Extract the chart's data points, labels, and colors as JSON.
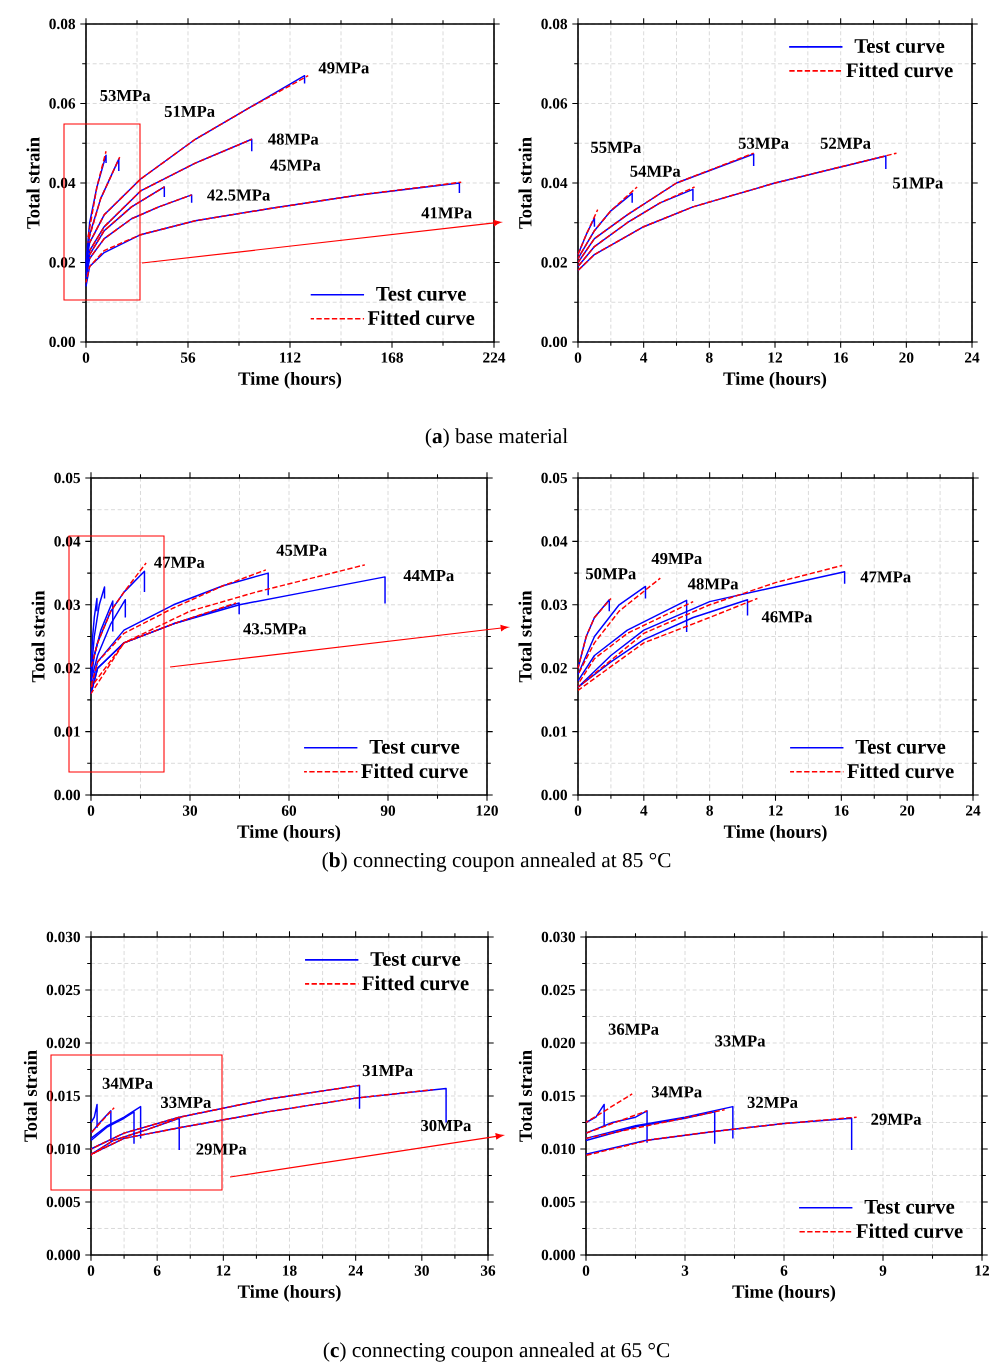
{
  "chart_data": [
    {
      "type": "line",
      "xlabel": "Time (hours)",
      "ylabel": "Total strain",
      "xlim": [
        0,
        224
      ],
      "ylim": [
        0,
        0.08
      ],
      "xticks": [
        0,
        56,
        112,
        168,
        224
      ],
      "yticks": [
        {
          "value": 0,
          "label": "0.00"
        },
        {
          "value": 0.02,
          "label": "0.02"
        },
        {
          "value": 0.04,
          "label": "0.04"
        },
        {
          "value": 0.06,
          "label": "0.06"
        },
        {
          "value": 0.08,
          "label": "0.08"
        }
      ],
      "grid": true,
      "legend": "bottom right",
      "series": [
        {
          "name": "Test curve",
          "color": "#0000ff",
          "line_style": "solid",
          "x": [
            0,
            2,
            10,
            30,
            60,
            100,
            150,
            205,
            205
          ],
          "values": [
            0.014,
            0.019,
            0.0225,
            0.027,
            0.0305,
            0.0335,
            0.037,
            0.04,
            0.0375
          ]
        },
        {
          "color": "#0000ff",
          "line_style": "solid",
          "x": [
            0,
            2,
            10,
            25,
            40,
            58,
            58
          ],
          "values": [
            0.016,
            0.021,
            0.026,
            0.031,
            0.034,
            0.037,
            0.035
          ]
        },
        {
          "color": "#0000ff",
          "line_style": "solid",
          "x": [
            0,
            2,
            10,
            25,
            43,
            43
          ],
          "values": [
            0.017,
            0.022,
            0.028,
            0.034,
            0.039,
            0.0365
          ]
        },
        {
          "color": "#0000ff",
          "line_style": "solid",
          "x": [
            0,
            2,
            10,
            30,
            60,
            91,
            91
          ],
          "values": [
            0.018,
            0.023,
            0.029,
            0.038,
            0.045,
            0.051,
            0.048
          ]
        },
        {
          "color": "#0000ff",
          "line_style": "solid",
          "x": [
            0,
            2,
            10,
            30,
            60,
            90,
            120,
            120
          ],
          "values": [
            0.019,
            0.025,
            0.032,
            0.041,
            0.051,
            0.059,
            0.067,
            0.065
          ]
        },
        {
          "color": "#0000ff",
          "line_style": "solid",
          "x": [
            0,
            2,
            8,
            18,
            18
          ],
          "values": [
            0.019,
            0.027,
            0.036,
            0.046,
            0.043
          ]
        },
        {
          "color": "#0000ff",
          "line_style": "solid",
          "x": [
            0,
            2,
            6,
            11,
            11
          ],
          "values": [
            0.02,
            0.03,
            0.039,
            0.047,
            0.045
          ]
        },
        {
          "name": "Fitted curve",
          "color": "#ff0000",
          "line_style": "dashed",
          "x": [
            0,
            2,
            10,
            30,
            60,
            100,
            150,
            206
          ],
          "values": [
            0.015,
            0.019,
            0.023,
            0.027,
            0.0305,
            0.0335,
            0.037,
            0.0402
          ]
        },
        {
          "color": "#ff0000",
          "line_style": "dashed",
          "x": [
            2,
            10,
            25,
            40,
            58
          ],
          "values": [
            0.021,
            0.026,
            0.031,
            0.034,
            0.037
          ]
        },
        {
          "color": "#ff0000",
          "line_style": "dashed",
          "x": [
            2,
            10,
            25,
            43
          ],
          "values": [
            0.022,
            0.028,
            0.034,
            0.039
          ]
        },
        {
          "color": "#ff0000",
          "line_style": "dashed",
          "x": [
            2,
            10,
            30,
            60,
            91
          ],
          "values": [
            0.023,
            0.029,
            0.038,
            0.045,
            0.051
          ]
        },
        {
          "color": "#ff0000",
          "line_style": "dashed",
          "x": [
            2,
            10,
            30,
            60,
            90,
            122
          ],
          "values": [
            0.025,
            0.032,
            0.041,
            0.051,
            0.059,
            0.067
          ]
        },
        {
          "color": "#ff0000",
          "line_style": "dashed",
          "x": [
            1,
            8,
            18.5
          ],
          "values": [
            0.025,
            0.036,
            0.0465
          ]
        },
        {
          "color": "#ff0000",
          "line_style": "dashed",
          "x": [
            1,
            6,
            11
          ],
          "values": [
            0.026,
            0.039,
            0.048
          ]
        }
      ],
      "annotations": [
        "53MPa",
        "51MPa",
        "49MPa",
        "48MPa",
        "45MPa",
        "42.5MPa",
        "41MPa",
        "(**a**) base material"
      ]
    },
    {
      "type": "line",
      "xlabel": "Time (hours)",
      "ylabel": "Total strain",
      "xlim": [
        0,
        24
      ],
      "ylim": [
        0,
        0.08
      ],
      "xticks": [
        0,
        4,
        8,
        12,
        16,
        20,
        24
      ],
      "yticks": [
        {
          "value": 0,
          "label": "0.00"
        },
        {
          "value": 0.02,
          "label": "0.02"
        },
        {
          "value": 0.04,
          "label": "0.04"
        },
        {
          "value": 0.06,
          "label": "0.06"
        },
        {
          "value": 0.08,
          "label": "0.08"
        }
      ],
      "grid": true,
      "legend": "top right",
      "series": [
        {
          "name": "Test curve",
          "color": "#0000ff",
          "line_style": "solid",
          "x": [
            0,
            1,
            4,
            7,
            12,
            18.75,
            18.75
          ],
          "values": [
            0.018,
            0.022,
            0.029,
            0.034,
            0.04,
            0.0468,
            0.0435
          ]
        },
        {
          "color": "#0000ff",
          "line_style": "solid",
          "x": [
            0,
            1,
            3,
            5,
            7,
            7
          ],
          "values": [
            0.019,
            0.024,
            0.03,
            0.035,
            0.0384,
            0.0355
          ]
        },
        {
          "color": "#0000ff",
          "line_style": "solid",
          "x": [
            0,
            1,
            3,
            6,
            10.7,
            10.7
          ],
          "values": [
            0.02,
            0.026,
            0.032,
            0.04,
            0.0473,
            0.0443
          ]
        },
        {
          "color": "#0000ff",
          "line_style": "solid",
          "x": [
            0,
            1,
            2,
            3.3,
            3.3
          ],
          "values": [
            0.021,
            0.028,
            0.033,
            0.0374,
            0.035
          ]
        },
        {
          "color": "#0000ff",
          "line_style": "solid",
          "x": [
            0,
            0.5,
            1,
            1
          ],
          "values": [
            0.022,
            0.027,
            0.0312,
            0.029
          ]
        },
        {
          "name": "Fitted curve",
          "color": "#ff0000",
          "line_style": "dashed",
          "x": [
            0,
            1,
            4,
            7,
            12,
            19.4
          ],
          "values": [
            0.018,
            0.022,
            0.029,
            0.034,
            0.04,
            0.0475
          ]
        },
        {
          "color": "#ff0000",
          "line_style": "dashed",
          "x": [
            0,
            1,
            3,
            5,
            7.1
          ],
          "values": [
            0.019,
            0.024,
            0.03,
            0.035,
            0.039
          ]
        },
        {
          "color": "#ff0000",
          "line_style": "dashed",
          "x": [
            0,
            1,
            3,
            6,
            10.7
          ],
          "values": [
            0.02,
            0.026,
            0.032,
            0.04,
            0.0475
          ]
        },
        {
          "color": "#ff0000",
          "line_style": "dashed",
          "x": [
            0,
            1,
            2,
            3.6
          ],
          "values": [
            0.021,
            0.028,
            0.033,
            0.039
          ]
        },
        {
          "color": "#ff0000",
          "line_style": "dashed",
          "x": [
            0,
            0.5,
            1.2
          ],
          "values": [
            0.022,
            0.027,
            0.0333
          ]
        }
      ],
      "annotations": [
        "55MPa",
        "54MPa",
        "53MPa",
        "52MPa",
        "51MPa"
      ]
    },
    {
      "type": "line",
      "xlabel": "Time (hours)",
      "ylabel": "Total strain",
      "xlim": [
        0,
        120
      ],
      "ylim": [
        0,
        0.05
      ],
      "xticks": [
        0,
        30,
        60,
        90,
        120
      ],
      "yticks": [
        {
          "value": 0,
          "label": "0.00"
        },
        {
          "value": 0.01,
          "label": "0.01"
        },
        {
          "value": 0.02,
          "label": "0.02"
        },
        {
          "value": 0.03,
          "label": "0.03"
        },
        {
          "value": 0.04,
          "label": "0.04"
        },
        {
          "value": 0.05,
          "label": "0.05"
        }
      ],
      "grid": true,
      "legend": "bottom right",
      "series": [
        {
          "name": "Test curve",
          "color": "#0000ff",
          "line_style": "solid",
          "x": [
            0,
            2,
            10,
            25,
            45,
            65,
            89.1,
            89.1
          ],
          "values": [
            0.016,
            0.02,
            0.024,
            0.027,
            0.03,
            0.032,
            0.0344,
            0.0302
          ]
        },
        {
          "color": "#0000ff",
          "line_style": "solid",
          "x": [
            0,
            2,
            10,
            25,
            40,
            53.7,
            53.7
          ],
          "values": [
            0.017,
            0.021,
            0.026,
            0.03,
            0.033,
            0.035,
            0.0315
          ]
        },
        {
          "color": "#0000ff",
          "line_style": "solid",
          "x": [
            0,
            2,
            10,
            25,
            44.9,
            44.9
          ],
          "values": [
            0.016,
            0.02,
            0.024,
            0.027,
            0.0303,
            0.0285
          ]
        },
        {
          "color": "#0000ff",
          "line_style": "solid",
          "x": [
            0,
            2,
            6,
            10,
            16.2,
            16.2
          ],
          "values": [
            0.02,
            0.024,
            0.029,
            0.032,
            0.0353,
            0.032
          ]
        },
        {
          "color": "#0000ff",
          "line_style": "solid",
          "x": [
            0,
            2,
            6,
            10.4,
            10.4
          ],
          "values": [
            0.018,
            0.022,
            0.027,
            0.0308,
            0.028
          ]
        },
        {
          "color": "#0000ff",
          "line_style": "solid",
          "x": [
            0,
            1,
            3,
            6.6,
            6.6
          ],
          "values": [
            0.018,
            0.022,
            0.026,
            0.0306,
            0.0258
          ]
        },
        {
          "color": "#0000ff",
          "line_style": "solid",
          "x": [
            0,
            1,
            2.5,
            4.1,
            4.1
          ],
          "values": [
            0.019,
            0.025,
            0.03,
            0.0328,
            0.031
          ]
        },
        {
          "color": "#0000ff",
          "line_style": "solid",
          "x": [
            0,
            0.5,
            1,
            1.8,
            1.8
          ],
          "values": [
            0.02,
            0.025,
            0.028,
            0.031,
            0.029
          ]
        },
        {
          "name": "Fitted curve",
          "color": "#ff0000",
          "line_style": "dashed",
          "x": [
            0,
            10,
            30,
            50,
            83
          ],
          "values": [
            0.017,
            0.024,
            0.029,
            0.032,
            0.0363
          ]
        },
        {
          "color": "#ff0000",
          "line_style": "dashed",
          "x": [
            0,
            2,
            10,
            25,
            40,
            53
          ],
          "values": [
            0.017,
            0.021,
            0.0255,
            0.0295,
            0.033,
            0.0355
          ]
        },
        {
          "color": "#ff0000",
          "line_style": "dashed",
          "x": [
            0,
            10,
            25,
            44
          ],
          "values": [
            0.016,
            0.024,
            0.027,
            0.0303
          ]
        },
        {
          "color": "#ff0000",
          "line_style": "dashed",
          "x": [
            0,
            2,
            6,
            10,
            16.7
          ],
          "values": [
            0.02,
            0.024,
            0.029,
            0.032,
            0.0366
          ]
        }
      ],
      "annotations": [
        "47MPa",
        "45MPa",
        "44MPa",
        "43.5MPa",
        "(**b**) connecting coupon annealed at 85 °C"
      ]
    },
    {
      "type": "line",
      "xlabel": "Time (hours)",
      "ylabel": "Total strain",
      "xlim": [
        0,
        24
      ],
      "ylim": [
        0,
        0.05
      ],
      "xticks": [
        0,
        4,
        8,
        12,
        16,
        20,
        24
      ],
      "yticks": [
        {
          "value": 0,
          "label": "0.00"
        },
        {
          "value": 0.01,
          "label": "0.01"
        },
        {
          "value": 0.02,
          "label": "0.02"
        },
        {
          "value": 0.03,
          "label": "0.03"
        },
        {
          "value": 0.04,
          "label": "0.04"
        },
        {
          "value": 0.05,
          "label": "0.05"
        }
      ],
      "grid": true,
      "legend": "bottom right",
      "series": [
        {
          "name": "Test curve",
          "color": "#0000ff",
          "line_style": "solid",
          "x": [
            0,
            2,
            4,
            8,
            12,
            16.2,
            16.2
          ],
          "values": [
            0.017,
            0.022,
            0.026,
            0.0305,
            0.0328,
            0.0352,
            0.0333
          ]
        },
        {
          "color": "#0000ff",
          "line_style": "solid",
          "x": [
            0,
            2,
            4,
            7,
            10.3,
            10.3
          ],
          "values": [
            0.017,
            0.021,
            0.0245,
            0.028,
            0.0308,
            0.0283
          ]
        },
        {
          "color": "#0000ff",
          "line_style": "solid",
          "x": [
            0,
            1,
            3,
            6.6,
            6.6
          ],
          "values": [
            0.018,
            0.022,
            0.026,
            0.0307,
            0.0257
          ]
        },
        {
          "color": "#0000ff",
          "line_style": "solid",
          "x": [
            0,
            1,
            2.5,
            4.1,
            4.1
          ],
          "values": [
            0.019,
            0.025,
            0.03,
            0.0329,
            0.031
          ]
        },
        {
          "color": "#0000ff",
          "line_style": "solid",
          "x": [
            0,
            0.5,
            1,
            1.9,
            1.9
          ],
          "values": [
            0.02,
            0.025,
            0.028,
            0.0308,
            0.029
          ]
        },
        {
          "name": "Fitted curve",
          "color": "#ff0000",
          "line_style": "dashed",
          "x": [
            0,
            4,
            8,
            12,
            16.05
          ],
          "values": [
            0.017,
            0.0255,
            0.03,
            0.0335,
            0.0362
          ]
        },
        {
          "color": "#ff0000",
          "line_style": "dashed",
          "x": [
            0,
            4,
            8,
            10.9
          ],
          "values": [
            0.0165,
            0.024,
            0.028,
            0.031
          ]
        },
        {
          "color": "#ff0000",
          "line_style": "dashed",
          "x": [
            0,
            1,
            3,
            7
          ],
          "values": [
            0.0175,
            0.0215,
            0.0255,
            0.0305
          ]
        },
        {
          "color": "#ff0000",
          "line_style": "dashed",
          "x": [
            0,
            1,
            2.5,
            5
          ],
          "values": [
            0.019,
            0.024,
            0.029,
            0.0342
          ]
        },
        {
          "color": "#ff0000",
          "line_style": "dashed",
          "x": [
            0,
            0.5,
            1,
            2
          ],
          "values": [
            0.02,
            0.025,
            0.028,
            0.031
          ]
        }
      ],
      "annotations": [
        "50MPa",
        "49MPa",
        "48MPa",
        "47MPa",
        "46MPa"
      ]
    },
    {
      "type": "line",
      "xlabel": "Time (hours)",
      "ylabel": "Total strain",
      "xlim": [
        0,
        36
      ],
      "ylim": [
        0,
        0.03
      ],
      "xticks": [
        0,
        6,
        12,
        18,
        24,
        30,
        36
      ],
      "yticks": [
        {
          "value": 0,
          "label": "0.000"
        },
        {
          "value": 0.005,
          "label": "0.005"
        },
        {
          "value": 0.01,
          "label": "0.010"
        },
        {
          "value": 0.015,
          "label": "0.015"
        },
        {
          "value": 0.02,
          "label": "0.020"
        },
        {
          "value": 0.025,
          "label": "0.025"
        },
        {
          "value": 0.03,
          "label": "0.030"
        }
      ],
      "grid": true,
      "legend": "top right",
      "series": [
        {
          "name": "Test curve",
          "color": "#0000ff",
          "line_style": "solid",
          "x": [
            0,
            3,
            8,
            16,
            24,
            32.2,
            32.2
          ],
          "values": [
            0.0095,
            0.011,
            0.012,
            0.0135,
            0.0148,
            0.0157,
            0.0125
          ]
        },
        {
          "color": "#0000ff",
          "line_style": "solid",
          "x": [
            0,
            3,
            8,
            16,
            24.35,
            24.35
          ],
          "values": [
            0.01,
            0.0115,
            0.013,
            0.0147,
            0.016,
            0.0138
          ]
        },
        {
          "color": "#0000ff",
          "line_style": "solid",
          "x": [
            0,
            2,
            5,
            8,
            8
          ],
          "values": [
            0.0095,
            0.0108,
            0.0118,
            0.0129,
            0.0099
          ]
        },
        {
          "color": "#0000ff",
          "line_style": "solid",
          "x": [
            0,
            1.5,
            3,
            4.5,
            4.5
          ],
          "values": [
            0.011,
            0.0122,
            0.013,
            0.014,
            0.011
          ]
        },
        {
          "color": "#0000ff",
          "line_style": "solid",
          "x": [
            0,
            1.5,
            3,
            3.9,
            3.9
          ],
          "values": [
            0.0108,
            0.0121,
            0.0129,
            0.0135,
            0.0105
          ]
        },
        {
          "color": "#0000ff",
          "line_style": "solid",
          "x": [
            0,
            0.8,
            1.8,
            1.8
          ],
          "values": [
            0.0115,
            0.0125,
            0.0136,
            0.0107
          ]
        },
        {
          "color": "#0000ff",
          "line_style": "solid",
          "x": [
            0,
            0.3,
            0.55,
            0.55
          ],
          "values": [
            0.0125,
            0.013,
            0.0142,
            0.012
          ]
        },
        {
          "name": "Fitted curve",
          "color": "#ff0000",
          "line_style": "dashed",
          "x": [
            0,
            3,
            8,
            16,
            24,
            31
          ],
          "values": [
            0.0095,
            0.011,
            0.012,
            0.0135,
            0.0148,
            0.0156
          ]
        },
        {
          "color": "#ff0000",
          "line_style": "dashed",
          "x": [
            0,
            3,
            8,
            16,
            24.35
          ],
          "values": [
            0.01,
            0.0115,
            0.013,
            0.0147,
            0.016
          ]
        },
        {
          "color": "#ff0000",
          "line_style": "dashed",
          "x": [
            0,
            2,
            5,
            8.2
          ],
          "values": [
            0.0094,
            0.0108,
            0.0118,
            0.013
          ]
        },
        {
          "color": "#ff0000",
          "line_style": "dashed",
          "x": [
            0,
            2.1
          ],
          "values": [
            0.0115,
            0.0139
          ]
        }
      ],
      "annotations": [
        "34MPa",
        "33MPa",
        "31MPa",
        "30MPa",
        "29MPa",
        "(**c**) connecting coupon annealed at 65 °C"
      ]
    },
    {
      "type": "line",
      "xlabel": "Time (hours)",
      "ylabel": "Total strain",
      "xlim": [
        0,
        12
      ],
      "ylim": [
        0,
        0.03
      ],
      "xticks": [
        0,
        3,
        6,
        9,
        12
      ],
      "yticks": [
        {
          "value": 0,
          "label": "0.000"
        },
        {
          "value": 0.005,
          "label": "0.005"
        },
        {
          "value": 0.01,
          "label": "0.010"
        },
        {
          "value": 0.015,
          "label": "0.015"
        },
        {
          "value": 0.02,
          "label": "0.020"
        },
        {
          "value": 0.025,
          "label": "0.025"
        },
        {
          "value": 0.03,
          "label": "0.030"
        }
      ],
      "grid": true,
      "legend": "bottom right",
      "series": [
        {
          "name": "Test curve",
          "color": "#0000ff",
          "line_style": "solid",
          "x": [
            0,
            1.8,
            4,
            6,
            8.05,
            8.05
          ],
          "values": [
            0.0095,
            0.0108,
            0.0117,
            0.0124,
            0.0129,
            0.0099
          ]
        },
        {
          "color": "#0000ff",
          "line_style": "solid",
          "x": [
            0,
            1.5,
            3,
            3.9,
            3.9
          ],
          "values": [
            0.0108,
            0.0121,
            0.0129,
            0.0135,
            0.0105
          ]
        },
        {
          "color": "#0000ff",
          "line_style": "solid",
          "x": [
            0,
            1.5,
            3,
            4.45,
            4.45
          ],
          "values": [
            0.011,
            0.0122,
            0.013,
            0.014,
            0.011
          ]
        },
        {
          "color": "#0000ff",
          "line_style": "solid",
          "x": [
            0,
            0.8,
            1.5,
            1.85,
            1.85
          ],
          "values": [
            0.0115,
            0.0125,
            0.013,
            0.0136,
            0.0106
          ]
        },
        {
          "color": "#0000ff",
          "line_style": "solid",
          "x": [
            0,
            0.3,
            0.55,
            0.55
          ],
          "values": [
            0.0125,
            0.013,
            0.0142,
            0.0122
          ]
        },
        {
          "name": "Fitted curve",
          "color": "#ff0000",
          "line_style": "dashed",
          "x": [
            0,
            2,
            4,
            6,
            8.2
          ],
          "values": [
            0.0094,
            0.0109,
            0.0117,
            0.0124,
            0.013
          ]
        },
        {
          "color": "#ff0000",
          "line_style": "dashed",
          "x": [
            0,
            4.2
          ],
          "values": [
            0.011,
            0.0137
          ]
        },
        {
          "color": "#ff0000",
          "line_style": "dashed",
          "x": [
            0,
            1.85
          ],
          "values": [
            0.0115,
            0.0136
          ]
        },
        {
          "color": "#ff0000",
          "line_style": "dashed",
          "x": [
            0,
            1.4
          ],
          "values": [
            0.0125,
            0.0152
          ]
        }
      ],
      "annotations": [
        "36MPa",
        "33MPa",
        "34MPa",
        "32MPa",
        "29MPa"
      ]
    }
  ]
}
